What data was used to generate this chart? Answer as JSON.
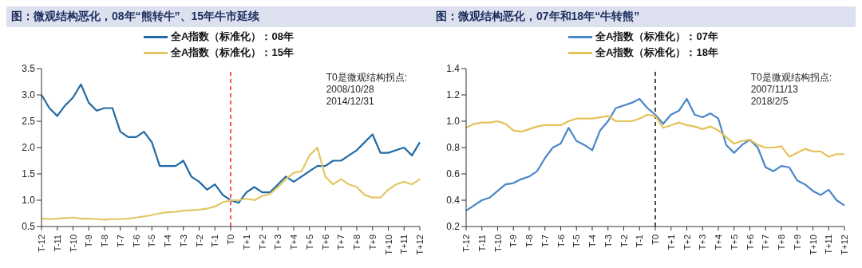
{
  "chart_data": [
    {
      "type": "line",
      "title": "图：微观结构恶化，08年“熊转牛”、15年牛市延续",
      "legend": "top",
      "categories": [
        "T-12",
        null,
        "T-11",
        null,
        "T-10",
        null,
        "T-9",
        null,
        "T-8",
        null,
        "T-7",
        null,
        "T-6",
        null,
        "T-5",
        null,
        "T-4",
        null,
        "T-3",
        null,
        "T-2",
        null,
        "T-1",
        null,
        "T0",
        null,
        "T+1",
        null,
        "T+2",
        null,
        "T+3",
        null,
        "T+4",
        null,
        "T+5",
        null,
        "T+6",
        null,
        "T+7",
        null,
        "T+8",
        null,
        "T+9",
        null,
        "T+10",
        null,
        "T+11",
        null,
        "T+12"
      ],
      "ylim": [
        0.5,
        3.5
      ],
      "yticks": [
        {
          "value": 0.5,
          "label": "0.5"
        },
        {
          "value": 1,
          "label": "1.0"
        },
        {
          "value": 1.5,
          "label": "1.5"
        },
        {
          "value": 2,
          "label": "2.0"
        },
        {
          "value": 2.5,
          "label": "2.5"
        },
        {
          "value": 3,
          "label": "3.0"
        },
        {
          "value": 3.5,
          "label": "3.5"
        }
      ],
      "ref_lines": [
        {
          "axis": "x",
          "value": "T0",
          "color": "#ff2020",
          "line_style": "dashed"
        }
      ],
      "annotations": [
        "T0是微观结构拐点:",
        "2008/10/28",
        "2014/12/31"
      ],
      "series": [
        {
          "name": "全A指数（标准化）：08年",
          "color": "#1f6aa5",
          "values": [
            3.0,
            2.75,
            2.6,
            2.8,
            2.95,
            3.2,
            2.85,
            2.7,
            2.75,
            2.75,
            2.3,
            2.2,
            2.2,
            2.3,
            2.1,
            1.65,
            1.65,
            1.65,
            1.75,
            1.45,
            1.35,
            1.2,
            1.3,
            1.1,
            1.0,
            0.95,
            1.15,
            1.25,
            1.15,
            1.15,
            1.3,
            1.45,
            1.35,
            1.45,
            1.55,
            1.65,
            1.65,
            1.75,
            1.75,
            1.85,
            1.95,
            2.1,
            2.25,
            1.9,
            1.9,
            1.95,
            2.0,
            1.85,
            2.1
          ]
        },
        {
          "name": "全A指数（标准化）：15年",
          "color": "#e3c665",
          "values": [
            0.65,
            0.64,
            0.65,
            0.66,
            0.67,
            0.65,
            0.65,
            0.64,
            0.63,
            0.64,
            0.64,
            0.65,
            0.67,
            0.69,
            0.72,
            0.75,
            0.77,
            0.78,
            0.8,
            0.81,
            0.82,
            0.84,
            0.88,
            0.96,
            1.0,
            1.0,
            1.03,
            1.0,
            1.08,
            1.12,
            1.25,
            1.4,
            1.52,
            1.55,
            1.85,
            2.0,
            1.45,
            1.3,
            1.4,
            1.3,
            1.25,
            1.1,
            1.05,
            1.05,
            1.2,
            1.3,
            1.35,
            1.3,
            1.4
          ]
        }
      ]
    },
    {
      "type": "line",
      "title": "图：微观结构恶化，07年和18年“牛转熊”",
      "legend": "top",
      "categories": [
        "T-12",
        null,
        "T-11",
        null,
        "T-10",
        null,
        "T-9",
        null,
        "T-8",
        null,
        "T-7",
        null,
        "T-6",
        null,
        "T-5",
        null,
        "T-4",
        null,
        "T-3",
        null,
        "T-2",
        null,
        "T-1",
        null,
        "T0",
        null,
        "T+1",
        null,
        "T+2",
        null,
        "T+3",
        null,
        "T+4",
        null,
        "T+5",
        null,
        "T+6",
        null,
        "T+7",
        null,
        "T+8",
        null,
        "T+9",
        null,
        "T+10",
        null,
        "T+11",
        null,
        "T+12"
      ],
      "ylim": [
        0.2,
        1.4
      ],
      "yticks": [
        {
          "value": 0.2,
          "label": "0.2"
        },
        {
          "value": 0.4,
          "label": "0.4"
        },
        {
          "value": 0.6,
          "label": "0.6"
        },
        {
          "value": 0.8,
          "label": "0.8"
        },
        {
          "value": 1,
          "label": "1.0"
        },
        {
          "value": 1.2,
          "label": "1.2"
        },
        {
          "value": 1.4,
          "label": "1.4"
        }
      ],
      "ref_lines": [
        {
          "axis": "x",
          "value": "T0",
          "color": "#111111",
          "line_style": "dashed"
        }
      ],
      "annotations": [
        "T0是微观结构拐点:",
        "2007/11/13",
        "2018/2/5"
      ],
      "series": [
        {
          "name": "全A指数（标准化）：07年",
          "color": "#4a86c8",
          "values": [
            0.32,
            0.36,
            0.4,
            0.42,
            0.47,
            0.52,
            0.53,
            0.56,
            0.58,
            0.62,
            0.72,
            0.8,
            0.83,
            0.95,
            0.85,
            0.82,
            0.78,
            0.93,
            1.0,
            1.1,
            1.12,
            1.14,
            1.17,
            1.1,
            1.05,
            0.98,
            1.05,
            1.08,
            1.17,
            1.05,
            1.03,
            1.06,
            1.02,
            0.82,
            0.76,
            0.82,
            0.86,
            0.8,
            0.65,
            0.62,
            0.66,
            0.65,
            0.55,
            0.52,
            0.47,
            0.44,
            0.48,
            0.4,
            0.36
          ]
        },
        {
          "name": "全A指数（标准化）：18年",
          "color": "#e3c35a",
          "values": [
            0.95,
            0.98,
            0.99,
            0.99,
            1.0,
            0.98,
            0.93,
            0.92,
            0.94,
            0.96,
            0.97,
            0.97,
            0.97,
            1.0,
            1.02,
            1.02,
            1.02,
            1.03,
            1.04,
            1.0,
            1.0,
            1.0,
            1.02,
            1.05,
            1.04,
            0.95,
            0.97,
            0.99,
            0.97,
            0.96,
            0.94,
            0.96,
            0.93,
            0.88,
            0.83,
            0.85,
            0.86,
            0.82,
            0.8,
            0.8,
            0.81,
            0.73,
            0.76,
            0.79,
            0.77,
            0.77,
            0.73,
            0.75,
            0.75
          ]
        }
      ]
    }
  ]
}
